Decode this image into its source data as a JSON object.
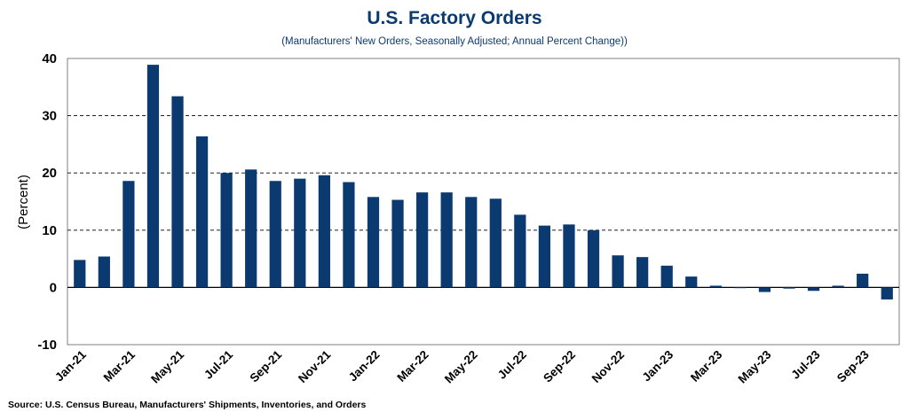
{
  "chart_data": {
    "type": "bar",
    "title": "U.S. Factory Orders",
    "subtitle": "(Manufacturers' New Orders, Seasonally Adjusted; Annual Percent Change))",
    "ylabel": "(Percent)",
    "xlabel": "",
    "source": "Source: U.S. Census Bureau, Manufacturers' Shipments, Inventories, and Orders",
    "ylim": [
      -10,
      40
    ],
    "yticks": [
      -10,
      0,
      10,
      20,
      30,
      40
    ],
    "grid": "horizontal dashed",
    "bar_color": "#0b3a70",
    "categories": [
      "Jan-21",
      "Feb-21",
      "Mar-21",
      "Apr-21",
      "May-21",
      "Jun-21",
      "Jul-21",
      "Aug-21",
      "Sep-21",
      "Oct-21",
      "Nov-21",
      "Dec-21",
      "Jan-22",
      "Feb-22",
      "Mar-22",
      "Apr-22",
      "May-22",
      "Jun-22",
      "Jul-22",
      "Aug-22",
      "Sep-22",
      "Oct-22",
      "Nov-22",
      "Dec-22",
      "Jan-23",
      "Feb-23",
      "Mar-23",
      "Apr-23",
      "May-23",
      "Jun-23",
      "Jul-23",
      "Aug-23",
      "Sep-23",
      "Oct-23"
    ],
    "tick_labels": [
      "Jan-21",
      "Mar-21",
      "May-21",
      "Jul-21",
      "Sep-21",
      "Nov-21",
      "Jan-22",
      "Mar-22",
      "May-22",
      "Jul-22",
      "Sep-22",
      "Nov-22",
      "Jan-23",
      "Mar-23",
      "May-23",
      "Jul-23",
      "Sep-23"
    ],
    "values": [
      4.8,
      5.4,
      18.6,
      38.9,
      33.4,
      26.4,
      20.0,
      20.6,
      18.6,
      19.0,
      19.6,
      18.4,
      15.8,
      15.3,
      16.6,
      16.6,
      15.8,
      15.5,
      12.7,
      10.8,
      11.0,
      10.0,
      5.6,
      5.3,
      3.8,
      1.9,
      0.3,
      0.0,
      -0.8,
      -0.2,
      -0.6,
      0.3,
      2.4,
      -2.1
    ]
  }
}
